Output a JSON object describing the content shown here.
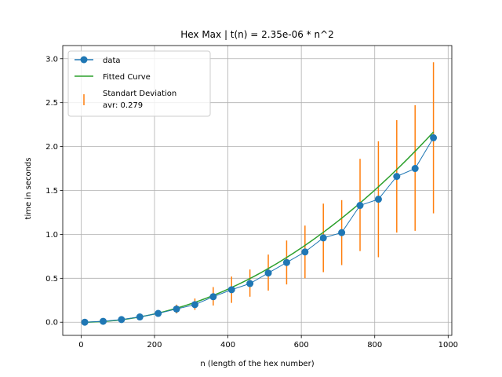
{
  "chart_data": {
    "type": "line",
    "title": "Hex Max | t(n) = 2.35e-06 * n^2",
    "xlabel": "n (length of the hex number)",
    "ylabel": "time in seconds",
    "xlim": [
      -50,
      1010
    ],
    "ylim": [
      -0.15,
      3.15
    ],
    "xticks": [
      0,
      200,
      400,
      600,
      800,
      1000
    ],
    "yticks": [
      0.0,
      0.5,
      1.0,
      1.5,
      2.0,
      2.5,
      3.0
    ],
    "ytick_labels": [
      "0.0",
      "0.5",
      "1.0",
      "1.5",
      "2.0",
      "2.5",
      "3.0"
    ],
    "grid": true,
    "legend_position": "top-left",
    "colors": {
      "data": "#1f77b4",
      "fit": "#2ca02c",
      "errorbar": "#ff7f0e",
      "grid": "#b0b0b0"
    },
    "x": [
      10,
      60,
      110,
      160,
      210,
      260,
      310,
      360,
      410,
      460,
      510,
      560,
      610,
      660,
      710,
      760,
      810,
      860,
      910,
      960
    ],
    "series": [
      {
        "name": "data",
        "values": [
          0.0,
          0.01,
          0.03,
          0.06,
          0.1,
          0.15,
          0.2,
          0.29,
          0.37,
          0.44,
          0.56,
          0.68,
          0.8,
          0.96,
          1.02,
          1.33,
          1.4,
          1.66,
          1.75,
          2.1
        ]
      },
      {
        "name": "Fitted Curve",
        "coefficient": 2.35e-06,
        "exponent": 2
      }
    ],
    "error_bars": {
      "name": "Standart Deviation",
      "name_line2": "avr: 0.279",
      "lower": [
        0.0,
        0.0,
        0.02,
        0.05,
        0.07,
        0.1,
        0.14,
        0.19,
        0.22,
        0.29,
        0.36,
        0.43,
        0.5,
        0.57,
        0.65,
        0.81,
        0.74,
        1.02,
        1.04,
        1.24
      ],
      "upper": [
        0.0,
        0.02,
        0.04,
        0.07,
        0.13,
        0.2,
        0.27,
        0.4,
        0.52,
        0.6,
        0.77,
        0.93,
        1.1,
        1.35,
        1.39,
        1.86,
        2.06,
        2.3,
        2.47,
        2.96
      ]
    }
  }
}
